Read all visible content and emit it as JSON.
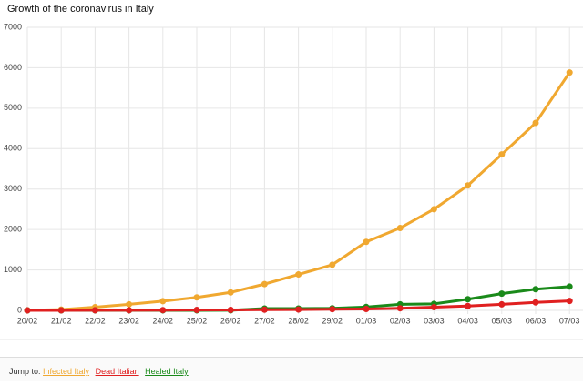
{
  "chart_data": {
    "type": "line",
    "title": "Growth of the coronavirus in Italy",
    "categories": [
      "20/02",
      "21/02",
      "22/02",
      "23/02",
      "24/02",
      "25/02",
      "26/02",
      "27/02",
      "28/02",
      "29/02",
      "01/03",
      "02/03",
      "03/03",
      "04/03",
      "05/03",
      "06/03",
      "07/03"
    ],
    "series": [
      {
        "name": "Infected Italy",
        "color": "#f0a830",
        "values": [
          3,
          20,
          79,
          150,
          227,
          320,
          445,
          650,
          888,
          1128,
          1694,
          2036,
          2502,
          3089,
          3858,
          4636,
          5883
        ]
      },
      {
        "name": "Healed Italy",
        "color": "#1a8a1a",
        "values": [
          0,
          0,
          1,
          1,
          1,
          1,
          3,
          45,
          46,
          50,
          83,
          149,
          160,
          276,
          414,
          523,
          589
        ]
      },
      {
        "name": "Dead Italian",
        "color": "#e02020",
        "values": [
          0,
          1,
          2,
          3,
          7,
          10,
          12,
          17,
          21,
          29,
          34,
          52,
          79,
          107,
          148,
          197,
          233
        ]
      }
    ],
    "ylim": [
      0,
      7000
    ],
    "yticks": [
      0,
      1000,
      2000,
      3000,
      4000,
      5000,
      6000,
      7000
    ],
    "grid": true
  },
  "footer": {
    "label": "Jump to:",
    "links": [
      "Infected Italy",
      "Dead Italian",
      "Healed Italy"
    ]
  }
}
